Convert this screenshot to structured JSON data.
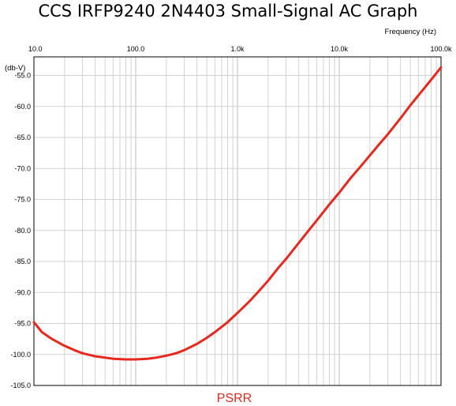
{
  "chart_data": {
    "type": "line",
    "title": "CCS IRFP9240 2N4403 Small-Signal AC Graph",
    "xlabel": "Frequency (Hz)",
    "ylabel": "(db-V)",
    "x_scale": "log",
    "xlim": [
      10,
      100000
    ],
    "ylim": [
      -105,
      -52
    ],
    "x_ticks": [
      {
        "value": 10,
        "label": "10.0"
      },
      {
        "value": 100,
        "label": "100.0"
      },
      {
        "value": 1000,
        "label": "1.0k"
      },
      {
        "value": 10000,
        "label": "10.0k"
      },
      {
        "value": 100000,
        "label": "100.0k"
      }
    ],
    "y_ticks": [
      {
        "value": -55,
        "label": "-55.0"
      },
      {
        "value": -60,
        "label": "-60.0"
      },
      {
        "value": -65,
        "label": "-65.0"
      },
      {
        "value": -70,
        "label": "-70.0"
      },
      {
        "value": -75,
        "label": "-75.0"
      },
      {
        "value": -80,
        "label": "-80.0"
      },
      {
        "value": -85,
        "label": "-85.0"
      },
      {
        "value": -90,
        "label": "-90.0"
      },
      {
        "value": -95,
        "label": "-95.0"
      },
      {
        "value": -100,
        "label": "-100.0"
      },
      {
        "value": -105,
        "label": "-105.0"
      }
    ],
    "grid": true,
    "legend_position": "bottom-center",
    "series": [
      {
        "name": "PSRR",
        "color": "#e8281e",
        "x": [
          10,
          12,
          15,
          20,
          25,
          30,
          40,
          50,
          60,
          80,
          100,
          130,
          160,
          200,
          250,
          300,
          400,
          500,
          600,
          800,
          1000,
          1300,
          1600,
          2000,
          2500,
          3000,
          4000,
          5000,
          6000,
          8000,
          10000,
          13000,
          16000,
          20000,
          25000,
          30000,
          40000,
          50000,
          60000,
          80000,
          100000
        ],
        "y": [
          -94.8,
          -96.4,
          -97.5,
          -98.6,
          -99.3,
          -99.8,
          -100.3,
          -100.5,
          -100.7,
          -100.8,
          -100.8,
          -100.7,
          -100.5,
          -100.2,
          -99.8,
          -99.3,
          -98.3,
          -97.3,
          -96.4,
          -94.8,
          -93.3,
          -91.5,
          -89.9,
          -88.1,
          -86.1,
          -84.6,
          -82.0,
          -80.0,
          -78.4,
          -75.8,
          -73.9,
          -71.5,
          -69.8,
          -67.9,
          -66.0,
          -64.5,
          -61.9,
          -59.8,
          -58.2,
          -55.7,
          -53.7
        ]
      }
    ]
  }
}
